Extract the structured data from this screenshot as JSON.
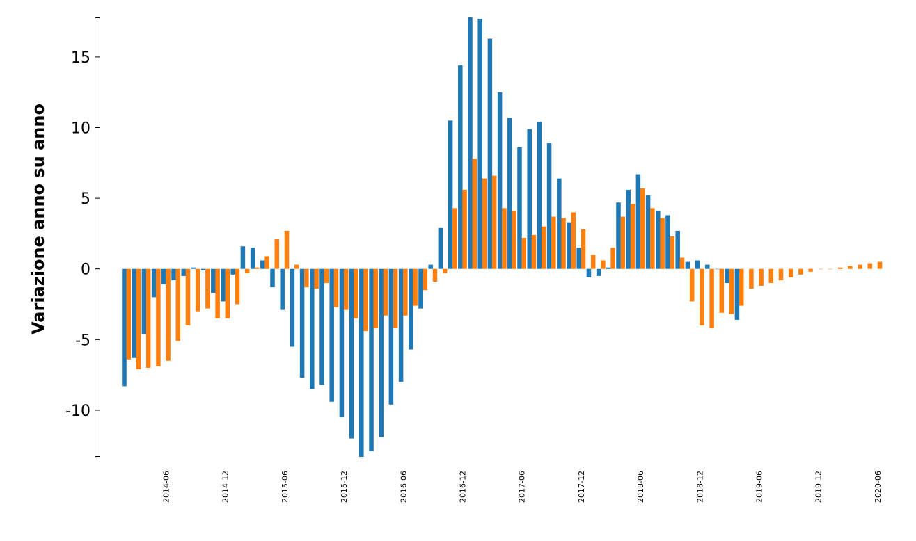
{
  "chart_data": {
    "type": "bar",
    "title": "",
    "xlabel": "",
    "ylabel": "Variazione anno su anno",
    "ylim": [
      -13.3,
      17.8
    ],
    "yticks": [
      15,
      10,
      5,
      0,
      -5,
      -10
    ],
    "ytick_labels": [
      "15",
      "10",
      "5",
      "0",
      "-5",
      "-10"
    ],
    "grid": false,
    "colors": {
      "series1": "#1f77b4",
      "series2": "#ff7f0e"
    },
    "start_month": "2014-02",
    "xtick_labels": [
      "2014-06",
      "2014-12",
      "2015-06",
      "2015-12",
      "2016-06",
      "2016-12",
      "2017-06",
      "2017-12",
      "2018-06",
      "2018-12",
      "2019-06",
      "2019-12",
      "2020-06"
    ],
    "series": [
      {
        "values": [
          -8.3,
          -6.3,
          -4.6,
          -2.0,
          -1.1,
          -0.8,
          -0.5,
          0.1,
          -0.1,
          -1.7,
          -2.3,
          -0.4,
          1.6,
          1.5,
          0.6,
          -1.3,
          -2.9,
          -5.5,
          -7.7,
          -8.5,
          -8.2,
          -9.4,
          -10.5,
          -12.0,
          -13.3,
          -12.9,
          -11.9,
          -9.6,
          -8.0,
          -5.7,
          -2.8,
          0.3,
          2.9,
          10.5,
          14.4,
          17.8,
          17.7,
          16.3,
          12.5,
          10.7,
          8.6,
          9.9,
          10.4,
          8.9,
          6.4,
          3.3,
          1.5,
          -0.6,
          -0.5,
          0.1,
          4.7,
          5.6,
          6.7,
          5.2,
          4.1,
          3.8,
          2.7,
          0.5,
          0.6,
          0.3,
          0.0,
          -1.0,
          -3.6
        ],
        "count": 63
      },
      {
        "values": [
          -6.4,
          -7.1,
          -7.0,
          -6.9,
          -6.5,
          -5.1,
          -4.0,
          -3.0,
          -2.8,
          -3.5,
          -3.5,
          -2.5,
          -0.3,
          0.1,
          0.9,
          2.1,
          2.7,
          0.3,
          -1.3,
          -1.4,
          -1.0,
          -2.7,
          -2.9,
          -3.5,
          -4.4,
          -4.2,
          -3.3,
          -4.2,
          -3.3,
          -2.6,
          -1.5,
          -0.9,
          -0.3,
          4.3,
          5.6,
          7.8,
          6.4,
          6.6,
          4.3,
          4.1,
          2.2,
          2.4,
          3.0,
          3.7,
          3.6,
          4.0,
          2.8,
          1.0,
          0.6,
          1.5,
          3.7,
          4.6,
          5.7,
          4.3,
          3.6,
          2.3,
          0.8,
          -2.3,
          -4.0,
          -4.2,
          -3.1,
          -3.2,
          -2.6,
          -1.4,
          -1.2,
          -1.0,
          -0.8,
          -0.6,
          -0.4,
          -0.2,
          0.0,
          0.0,
          0.1,
          0.2,
          0.3,
          0.4,
          0.5
        ],
        "count": 77
      }
    ]
  }
}
